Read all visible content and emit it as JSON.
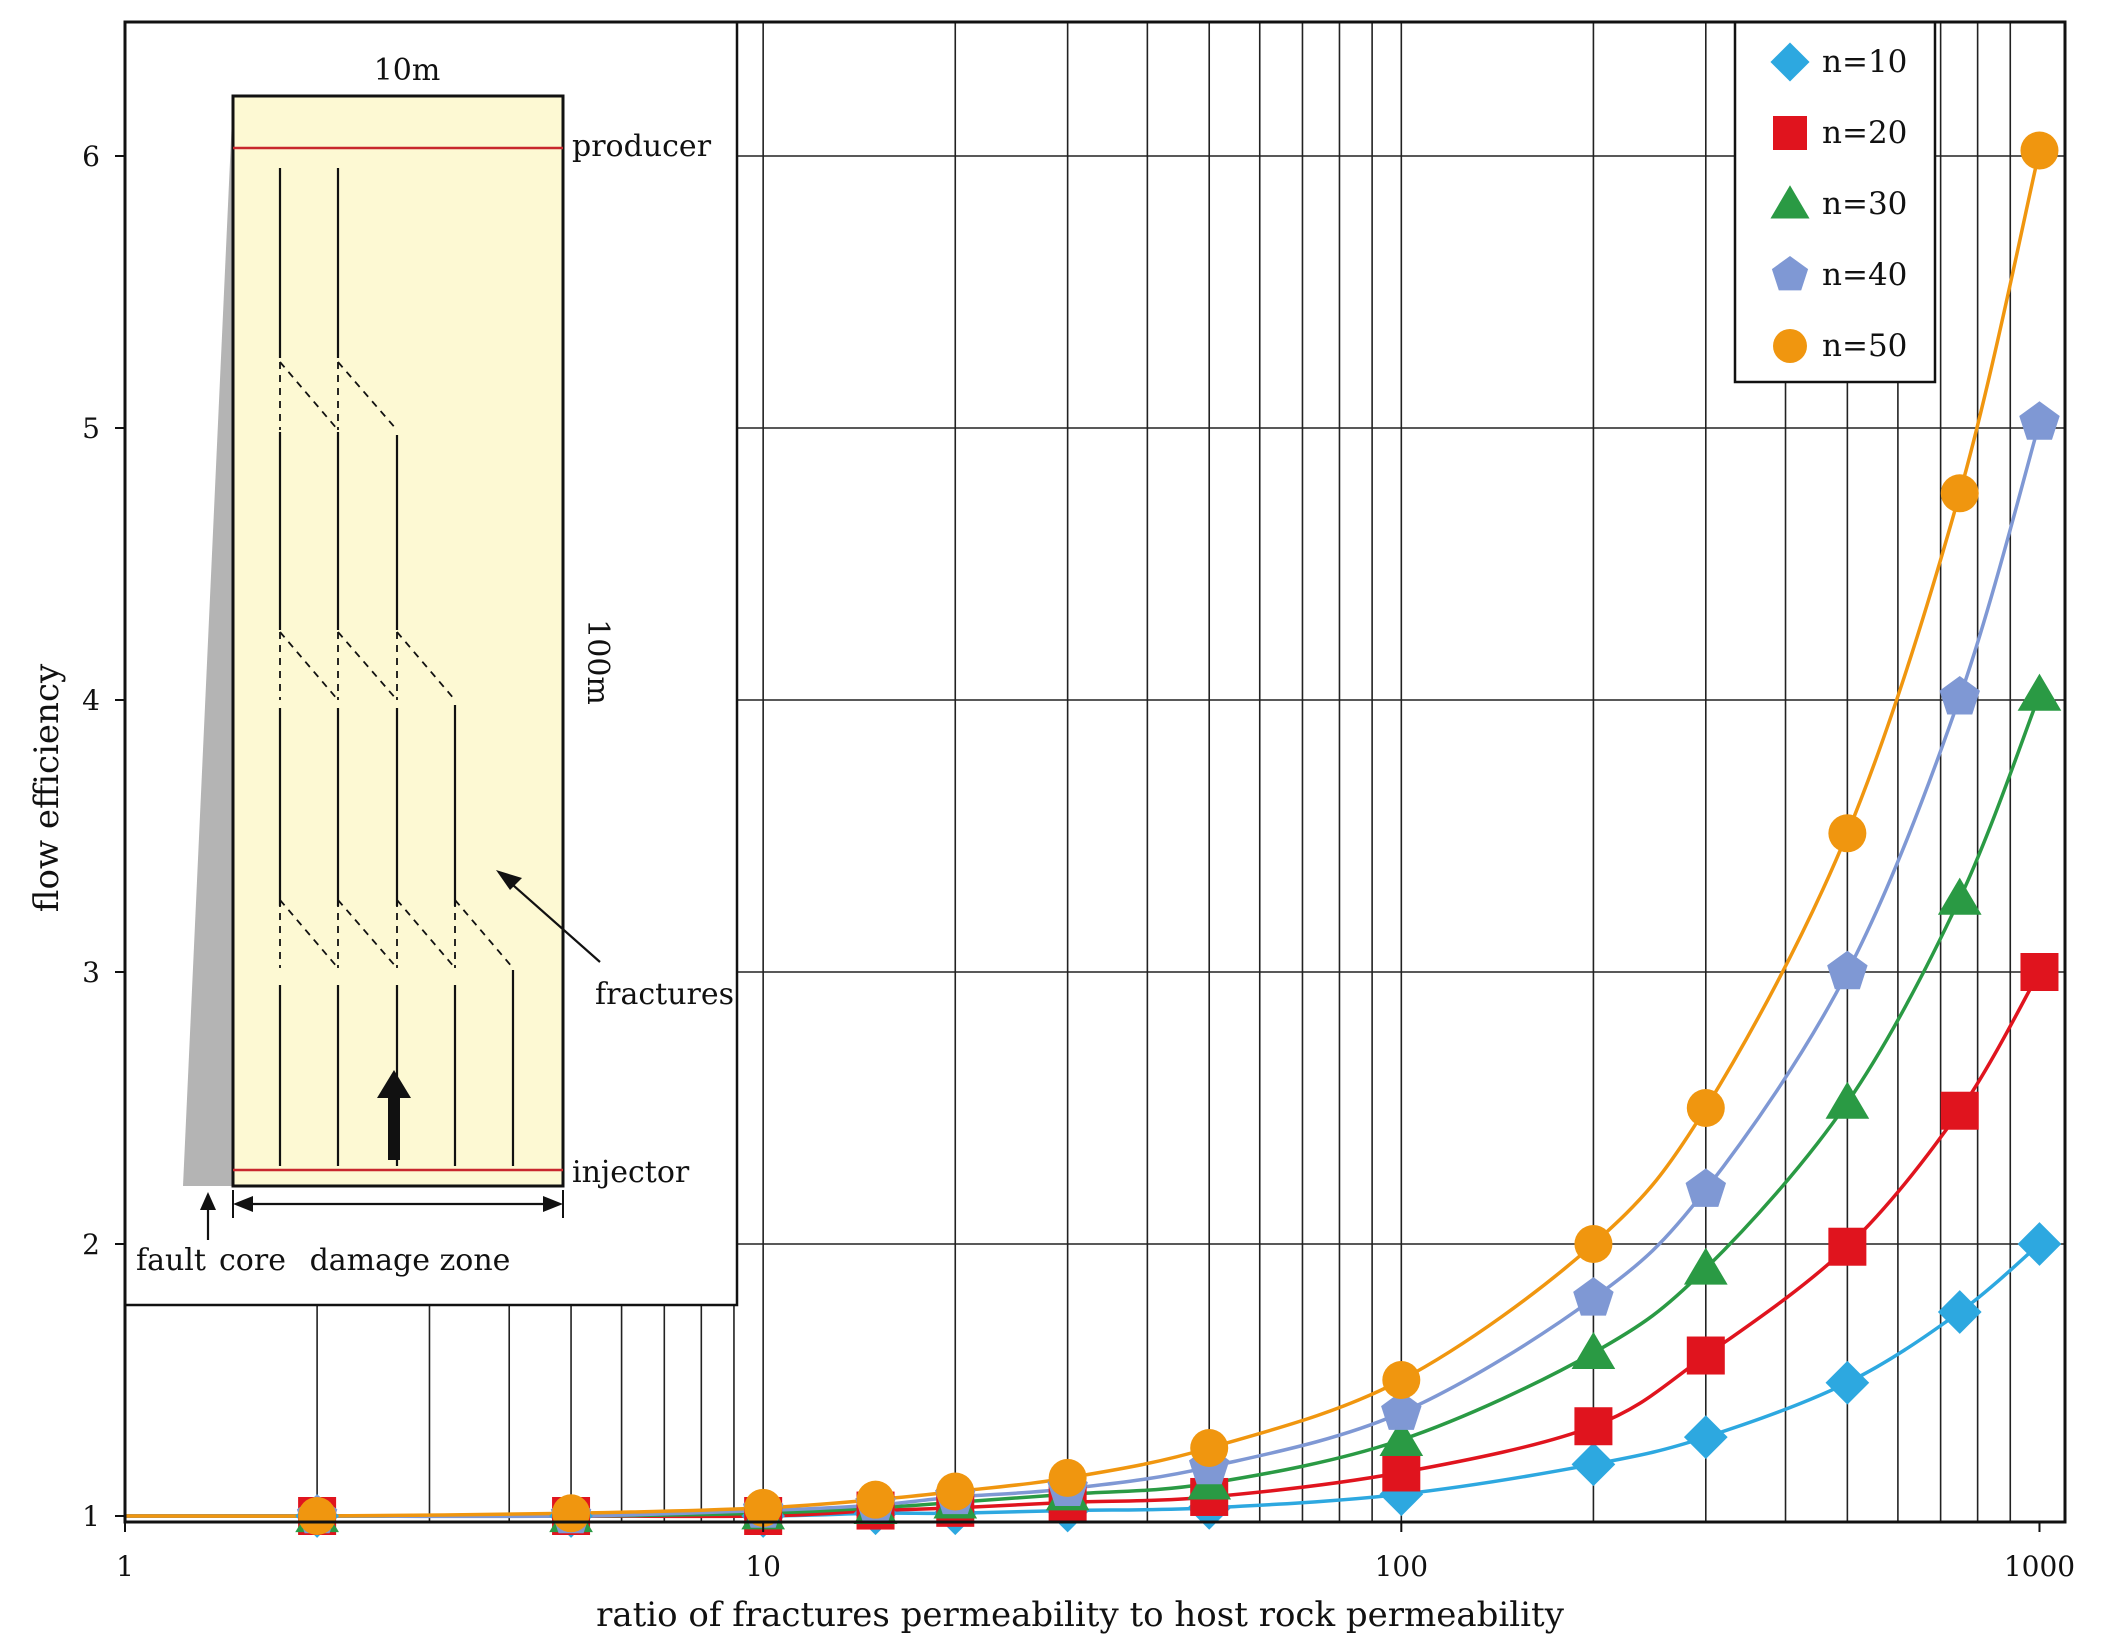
{
  "chart_data": {
    "type": "line",
    "xlabel": "ratio of fractures permeability to host rock permeability",
    "ylabel": "flow efficiency",
    "xscale": "log",
    "xlim": [
      1,
      1000
    ],
    "ylim": [
      1,
      6.5
    ],
    "x_ticks": [
      "1",
      "10",
      "100",
      "1000"
    ],
    "y_ticks": [
      "1",
      "2",
      "3",
      "4",
      "5",
      "6"
    ],
    "grid": true,
    "legend_position": "top-right",
    "x": [
      2,
      5,
      10,
      15,
      20,
      30,
      50,
      100,
      200,
      300,
      500,
      750,
      1000
    ],
    "series": [
      {
        "name": "n=10",
        "marker": "diamond",
        "color": "#2da8e0",
        "values": [
          1.0,
          1.0,
          1.0,
          1.01,
          1.01,
          1.02,
          1.03,
          1.08,
          1.19,
          1.29,
          1.49,
          1.75,
          2.0
        ]
      },
      {
        "name": "n=20",
        "marker": "square",
        "color": "#e0141e",
        "values": [
          1.0,
          1.0,
          1.0,
          1.02,
          1.03,
          1.05,
          1.07,
          1.16,
          1.33,
          1.59,
          1.99,
          2.49,
          3.0
        ]
      },
      {
        "name": "n=30",
        "marker": "triangle",
        "color": "#2a9a44",
        "values": [
          1.0,
          1.0,
          1.01,
          1.03,
          1.05,
          1.08,
          1.12,
          1.28,
          1.6,
          1.91,
          2.52,
          3.27,
          4.02
        ]
      },
      {
        "name": "n=40",
        "marker": "pentagon",
        "color": "#7f98d4",
        "values": [
          1.0,
          1.0,
          1.02,
          1.04,
          1.07,
          1.1,
          1.18,
          1.38,
          1.8,
          2.2,
          3.0,
          4.01,
          5.02
        ]
      },
      {
        "name": "n=50",
        "marker": "circle",
        "color": "#f0960f",
        "values": [
          1.0,
          1.01,
          1.03,
          1.06,
          1.09,
          1.14,
          1.25,
          1.5,
          2.0,
          2.5,
          3.51,
          4.76,
          6.02
        ]
      }
    ]
  },
  "inset": {
    "width_label": "10m",
    "height_label": "100m",
    "producer_label": "producer",
    "injector_label": "injector",
    "fractures_label": "fractures",
    "fault_label": "fault",
    "core_label": "core",
    "damage_zone_label": "damage zone",
    "colors": {
      "panel": "#fdf9d3",
      "core": "#b4b4b4",
      "well": "#c8282d"
    }
  }
}
